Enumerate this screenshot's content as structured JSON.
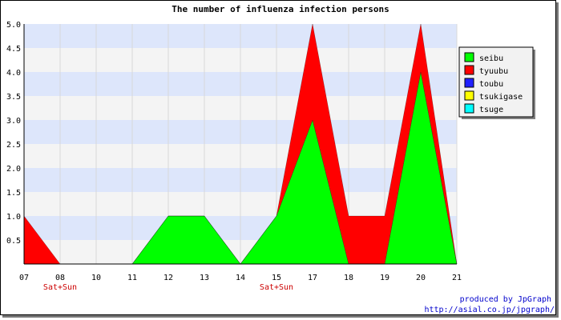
{
  "chart_data": {
    "type": "area",
    "title": "The number of influenza infection persons",
    "x": [
      "07",
      "08",
      "10",
      "11",
      "12",
      "13",
      "14",
      "15",
      "17",
      "18",
      "19",
      "20",
      "21"
    ],
    "x_notes": [
      {
        "at": "08",
        "text": "Sat+Sun"
      },
      {
        "at": "15",
        "text": "Sat+Sun"
      }
    ],
    "ylim": [
      0,
      5
    ],
    "yticks": [
      "0.5",
      "1.0",
      "1.5",
      "2.0",
      "2.5",
      "3.0",
      "3.5",
      "4.0",
      "4.5",
      "5.0"
    ],
    "stacked": true,
    "series": [
      {
        "name": "seibu",
        "color": "#00ff00",
        "values": [
          0,
          0,
          0,
          0,
          1,
          1,
          0,
          1,
          3,
          0,
          0,
          4,
          0
        ]
      },
      {
        "name": "tyuubu",
        "color": "#ff0000",
        "values": [
          1,
          0,
          0,
          0,
          0,
          0,
          0,
          0,
          2,
          1,
          1,
          1,
          0
        ]
      },
      {
        "name": "toubu",
        "color": "#2020ff",
        "values": [
          0,
          0,
          0,
          0,
          0,
          0,
          0,
          0,
          0,
          0,
          0,
          0,
          0
        ]
      },
      {
        "name": "tsukigase",
        "color": "#ffff00",
        "values": [
          0,
          0,
          0,
          0,
          0,
          0,
          0,
          0,
          0,
          0,
          0,
          0,
          0
        ]
      },
      {
        "name": "tsuge",
        "color": "#00ffff",
        "values": [
          0,
          0,
          0,
          0,
          0,
          0,
          0,
          0,
          0,
          0,
          0,
          0,
          0
        ]
      }
    ],
    "band_colors": [
      "#f4f4f4",
      "#dde6fb"
    ],
    "legend_position": "right-top"
  },
  "credit": {
    "line1": "produced by JpGraph",
    "line2": "http://asial.co.jp/jpgraph/"
  }
}
